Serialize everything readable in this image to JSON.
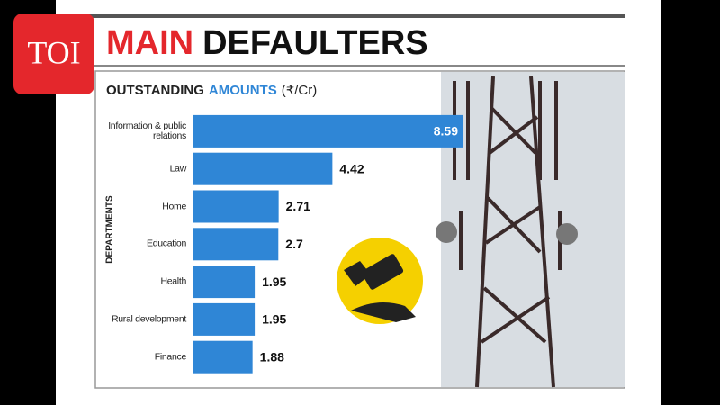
{
  "logo": "TOI",
  "chart_data": {
    "type": "bar",
    "orientation": "horizontal",
    "title": [
      "MAIN",
      "DEFAULTERS"
    ],
    "subtitle": [
      "OUTSTANDING",
      "AMOUNTS",
      "(₹/Cr)"
    ],
    "y_label": "DEPARTMENTS",
    "categories": [
      "Information & public relations",
      "Law",
      "Home",
      "Education",
      "Health",
      "Rural development",
      "Finance"
    ],
    "values": [
      8.59,
      4.42,
      2.71,
      2.7,
      1.95,
      1.95,
      1.88
    ],
    "color": "#2f86d6"
  }
}
